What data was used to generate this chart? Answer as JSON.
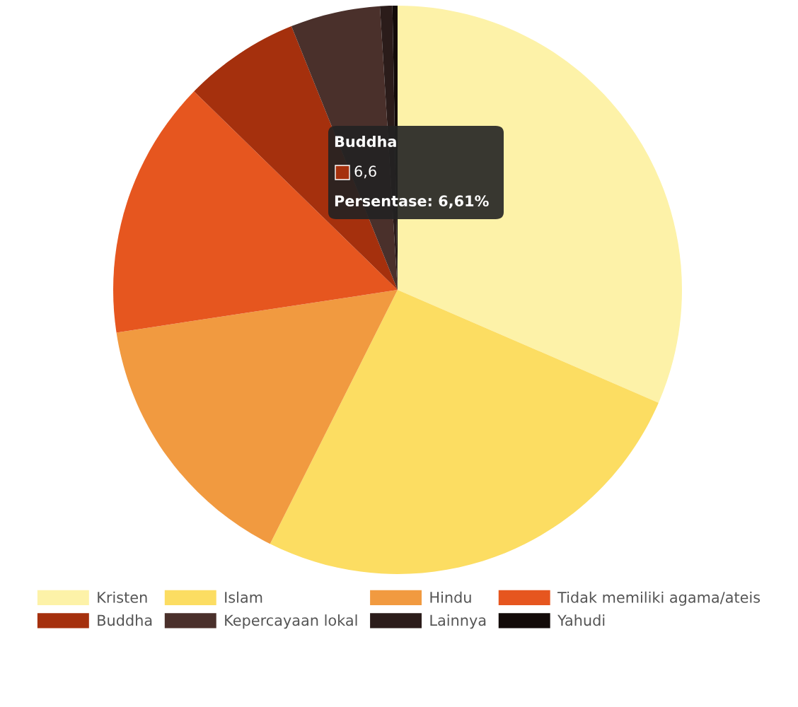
{
  "chart_data": {
    "type": "pie",
    "categories": [
      "Kristen",
      "Islam",
      "Hindu",
      "Tidak memiliki agama/ateis",
      "Buddha",
      "Kepercayaan lokal",
      "Lainnya",
      "Yahudi"
    ],
    "values": [
      31.5,
      25.9,
      15.2,
      14.7,
      6.61,
      5.1,
      0.7,
      0.29
    ],
    "colors": [
      "#fdf2a8",
      "#fcdd62",
      "#f19a40",
      "#e6561f",
      "#a5300d",
      "#4a302b",
      "#2b1c1a",
      "#130b09"
    ],
    "annotations": [
      "Buddha",
      "6,6",
      "Persentase: 6,61%"
    ],
    "legend": "bottom"
  }
}
